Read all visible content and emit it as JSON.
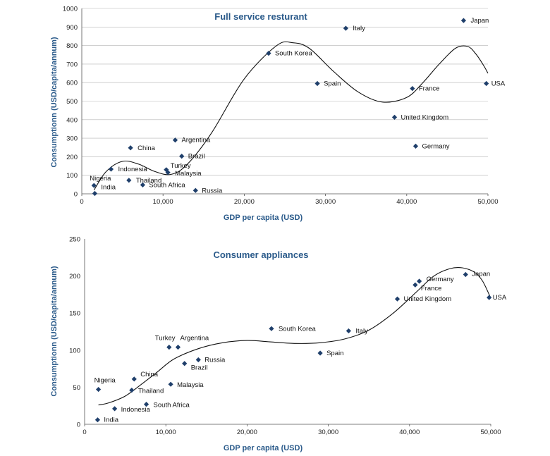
{
  "chart_data": [
    {
      "type": "scatter",
      "title": "Full service resturant",
      "xlabel": "GDP per capita (USD)",
      "ylabel": "Consumptionn (USD/capita/annum)",
      "xlim": [
        0,
        50000
      ],
      "ylim": [
        0,
        1000
      ],
      "xticks": [
        0,
        10000,
        20000,
        30000,
        40000,
        50000
      ],
      "xtick_labels": [
        "0",
        "10,000",
        "20,000",
        "30,000",
        "40,000",
        "50,000"
      ],
      "yticks": [
        0,
        100,
        200,
        300,
        400,
        500,
        600,
        700,
        800,
        900,
        1000
      ],
      "ytick_labels": [
        "0",
        "100",
        "200",
        "300",
        "400",
        "500",
        "600",
        "700",
        "800",
        "900",
        "1000"
      ],
      "grid": true,
      "marker_color": "#1f3f6b",
      "points": [
        {
          "label": "Japan",
          "x": 47000,
          "y": 935
        },
        {
          "label": "Italy",
          "x": 32500,
          "y": 893
        },
        {
          "label": "South Korea",
          "x": 23000,
          "y": 758
        },
        {
          "label": "Spain",
          "x": 29000,
          "y": 595
        },
        {
          "label": "USA",
          "x": 49800,
          "y": 595
        },
        {
          "label": "France",
          "x": 40700,
          "y": 568
        },
        {
          "label": "United Kingdom",
          "x": 38500,
          "y": 413
        },
        {
          "label": "Argentina",
          "x": 11500,
          "y": 290
        },
        {
          "label": "Germany",
          "x": 41100,
          "y": 257
        },
        {
          "label": "China",
          "x": 6000,
          "y": 248
        },
        {
          "label": "Brazil",
          "x": 12300,
          "y": 203
        },
        {
          "label": "Indonesia",
          "x": 3600,
          "y": 133
        },
        {
          "label": "Turkey",
          "x": 10400,
          "y": 130
        },
        {
          "label": "Malaysia",
          "x": 10600,
          "y": 115
        },
        {
          "label": "Thailand",
          "x": 5800,
          "y": 73
        },
        {
          "label": "South Africa",
          "x": 7500,
          "y": 48
        },
        {
          "label": "Nigeria",
          "x": 1500,
          "y": 45
        },
        {
          "label": "Russia",
          "x": 14000,
          "y": 18
        },
        {
          "label": "India",
          "x": 1600,
          "y": 2
        }
      ],
      "trendline": {
        "x": [
          1500,
          3000,
          5000,
          7000,
          9000,
          11000,
          13000,
          16000,
          20000,
          24000,
          26000,
          28000,
          31000,
          34000,
          37000,
          40000,
          42000,
          44000,
          46000,
          47500,
          48500,
          49500,
          50000
        ],
        "y": [
          20,
          120,
          175,
          160,
          120,
          105,
          160,
          330,
          620,
          800,
          815,
          785,
          660,
          550,
          495,
          520,
          600,
          700,
          785,
          795,
          755,
          690,
          650
        ]
      }
    },
    {
      "type": "scatter",
      "title": "Consumer appliances",
      "xlabel": "GDP per capita (USD)",
      "ylabel": "Consumptionn (USD/capita/annum)",
      "xlim": [
        0,
        50000
      ],
      "ylim": [
        0,
        250
      ],
      "xticks": [
        0,
        10000,
        20000,
        30000,
        40000,
        50000
      ],
      "xtick_labels": [
        "0",
        "10,000",
        "20,000",
        "30,000",
        "40,000",
        "50,000"
      ],
      "yticks": [
        0,
        50,
        100,
        150,
        200,
        250
      ],
      "ytick_labels": [
        "0",
        "50",
        "100",
        "150",
        "200",
        "250"
      ],
      "grid": false,
      "marker_color": "#1f3f6b",
      "points": [
        {
          "label": "Japan",
          "x": 46900,
          "y": 202
        },
        {
          "label": "Germany",
          "x": 41200,
          "y": 193
        },
        {
          "label": "France",
          "x": 40700,
          "y": 188
        },
        {
          "label": "USA",
          "x": 49800,
          "y": 171
        },
        {
          "label": "United Kingdom",
          "x": 38500,
          "y": 169
        },
        {
          "label": "South Korea",
          "x": 23000,
          "y": 129
        },
        {
          "label": "Italy",
          "x": 32500,
          "y": 126
        },
        {
          "label": "Turkey",
          "x": 10400,
          "y": 104
        },
        {
          "label": "Argentina",
          "x": 11500,
          "y": 104
        },
        {
          "label": "Spain",
          "x": 29000,
          "y": 96
        },
        {
          "label": "Russia",
          "x": 14000,
          "y": 87
        },
        {
          "label": "Brazil",
          "x": 12300,
          "y": 82
        },
        {
          "label": "China",
          "x": 6100,
          "y": 61
        },
        {
          "label": "Malaysia",
          "x": 10600,
          "y": 54
        },
        {
          "label": "Nigeria",
          "x": 1700,
          "y": 47
        },
        {
          "label": "Thailand",
          "x": 5800,
          "y": 46
        },
        {
          "label": "South Africa",
          "x": 7600,
          "y": 27
        },
        {
          "label": "Indonesia",
          "x": 3700,
          "y": 21
        },
        {
          "label": "India",
          "x": 1600,
          "y": 6
        }
      ],
      "trendline": {
        "x": [
          1700,
          3000,
          5000,
          7000,
          9000,
          11000,
          14000,
          17000,
          20000,
          23000,
          26000,
          29000,
          32000,
          35000,
          38000,
          41000,
          43000,
          45000,
          46500,
          48000,
          49000,
          50000
        ],
        "y": [
          26,
          29,
          38,
          54,
          71,
          88,
          102,
          110,
          113,
          111,
          109,
          110,
          115,
          127,
          150,
          180,
          200,
          210,
          211,
          205,
          193,
          170
        ]
      }
    }
  ]
}
